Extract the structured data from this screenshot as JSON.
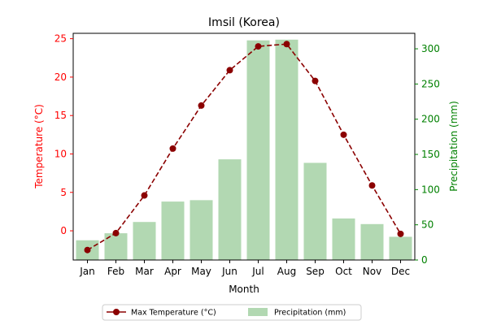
{
  "chart_data": {
    "type": "bar",
    "title": "Imsil (Korea)",
    "xlabel": "Month",
    "categories": [
      "Jan",
      "Feb",
      "Mar",
      "Apr",
      "May",
      "Jun",
      "Jul",
      "Aug",
      "Sep",
      "Oct",
      "Nov",
      "Dec"
    ],
    "left_axis": {
      "label": "Temperature (°C)",
      "color": "#ff0000",
      "ticks": [
        0,
        5,
        10,
        15,
        20,
        25
      ],
      "ylim": [
        -3.8,
        25.7
      ]
    },
    "right_axis": {
      "label": "Precipitation (mm)",
      "color": "#008000",
      "ticks": [
        0,
        50,
        100,
        150,
        200,
        250,
        300
      ],
      "ylim": [
        0,
        322
      ]
    },
    "series": [
      {
        "name": "Max Temperature (°C)",
        "kind": "line",
        "axis": "left",
        "color": "#8b0000",
        "values": [
          -2.5,
          -0.3,
          4.6,
          10.7,
          16.3,
          20.9,
          24.0,
          24.3,
          19.5,
          12.5,
          5.9,
          -0.4
        ]
      },
      {
        "name": "Precipitation (mm)",
        "kind": "bar",
        "axis": "right",
        "color": "#b2d8b2",
        "values": [
          28,
          38,
          54,
          83,
          85,
          143,
          312,
          313,
          138,
          59,
          51,
          33
        ]
      }
    ],
    "legend": "bottom-center",
    "grid": false
  }
}
